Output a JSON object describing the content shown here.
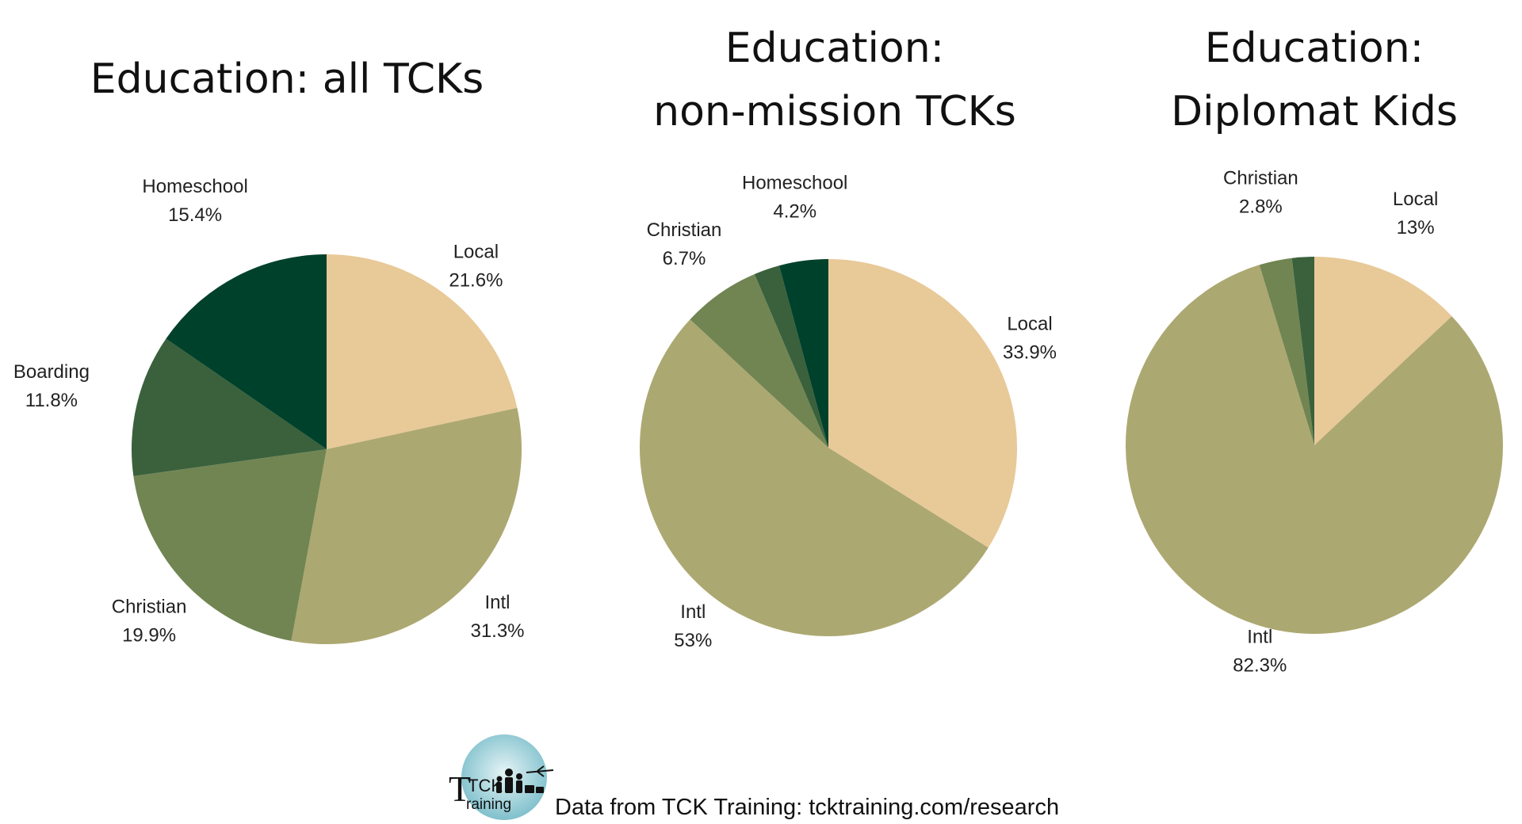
{
  "chart_data": [
    {
      "type": "pie",
      "title_lines": [
        "Education: all TCKs"
      ],
      "slices": [
        {
          "label": "Local",
          "value": 21.6,
          "value_text": "21.6%",
          "color": "#e8c998"
        },
        {
          "label": "Intl",
          "value": 31.3,
          "value_text": "31.3%",
          "color": "#aca871"
        },
        {
          "label": "Christian",
          "value": 19.9,
          "value_text": "19.9%",
          "color": "#718553"
        },
        {
          "label": "Boarding",
          "value": 11.8,
          "value_text": "11.8%",
          "color": "#3a613c"
        },
        {
          "label": "Homeschool",
          "value": 15.4,
          "value_text": "15.4%",
          "color": "#00412c"
        }
      ]
    },
    {
      "type": "pie",
      "title_lines": [
        "Education:",
        "non-mission TCKs"
      ],
      "slices": [
        {
          "label": "Local",
          "value": 33.9,
          "value_text": "33.9%",
          "color": "#e8c998"
        },
        {
          "label": "Intl",
          "value": 53,
          "value_text": "53%",
          "color": "#aca871"
        },
        {
          "label": "Christian",
          "value": 6.7,
          "value_text": "6.7%",
          "color": "#718553"
        },
        {
          "label": "",
          "value": 2.2,
          "value_text": "",
          "color": "#3a613c"
        },
        {
          "label": "Homeschool",
          "value": 4.2,
          "value_text": "4.2%",
          "color": "#00412c"
        }
      ]
    },
    {
      "type": "pie",
      "title_lines": [
        "Education:",
        "Diplomat Kids"
      ],
      "slices": [
        {
          "label": "Local",
          "value": 13,
          "value_text": "13%",
          "color": "#e8c998"
        },
        {
          "label": "Intl",
          "value": 82.3,
          "value_text": "82.3%",
          "color": "#aca871"
        },
        {
          "label": "Christian",
          "value": 2.8,
          "value_text": "2.8%",
          "color": "#718553"
        },
        {
          "label": "",
          "value": 1.9,
          "value_text": "",
          "color": "#3a613c"
        }
      ]
    }
  ],
  "logo": {
    "text_tck": "TCK",
    "text_training": "raining",
    "letter_t": "T",
    "circle_color": "#9fd0d8"
  },
  "footer": {
    "source_text": "Data from TCK Training: tcktraining.com/research"
  }
}
